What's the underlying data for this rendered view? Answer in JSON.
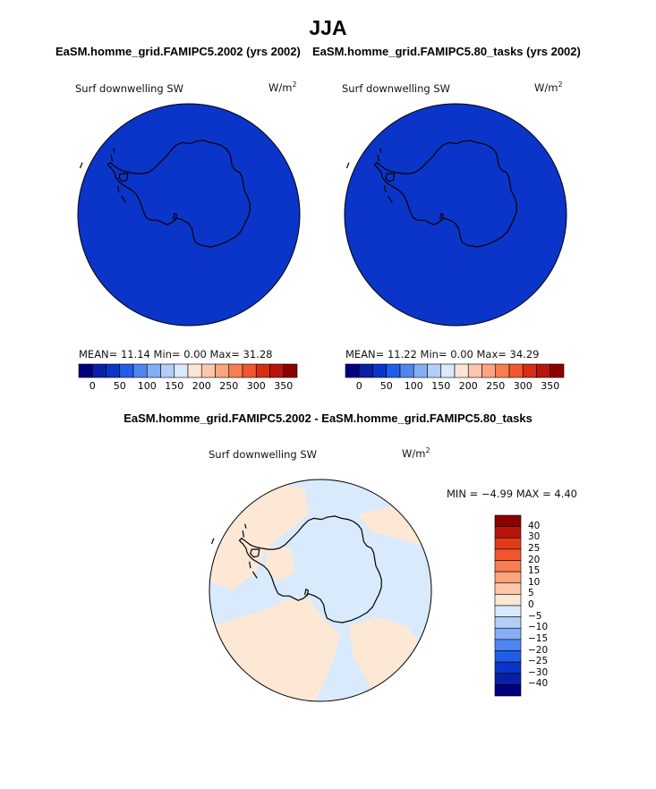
{
  "title": "JJA",
  "colors": {
    "map_blue": "#0a35c8",
    "diff_pos": "#fde8d6",
    "diff_neg": "#d8eafb",
    "coast": "#000000",
    "main_scale": [
      "#00007f",
      "#0a1fa8",
      "#0a35c8",
      "#1f5ee8",
      "#4f86f0",
      "#84aef5",
      "#b3cef8",
      "#dbe9fb",
      "#fde4d4",
      "#fcc6aa",
      "#fba57f",
      "#f87d52",
      "#f0572f",
      "#d72e13",
      "#b8160a",
      "#8c0000"
    ],
    "diff_scale": [
      "#8c0000",
      "#b8160a",
      "#e03b17",
      "#f0572f",
      "#f87d52",
      "#fba57f",
      "#fcc6aa",
      "#fde8d6",
      "#d8eafb",
      "#b3cef8",
      "#84aef5",
      "#4f86f0",
      "#1f5ee8",
      "#0a35c8",
      "#0a1fa8",
      "#00007f"
    ]
  },
  "panels": {
    "left": {
      "title": "EaSM.homme_grid.FAMIPC5.2002 (yrs 2002)",
      "variable": "Surf downwelling SW",
      "units_base": "W/m",
      "units_exp": "2",
      "stats": "MEAN=  11.14  Min=    0.00  Max=  31.28"
    },
    "right": {
      "title": "EaSM.homme_grid.FAMIPC5.80_tasks (yrs 2002)",
      "variable": "Surf downwelling SW",
      "units_base": "W/m",
      "units_exp": "2",
      "stats": "MEAN=  11.22  Min=    0.00  Max=  34.29"
    },
    "diff": {
      "title": "EaSM.homme_grid.FAMIPC5.2002 - EaSM.homme_grid.FAMIPC5.80_tasks",
      "variable": "Surf downwelling SW",
      "units_base": "W/m",
      "units_exp": "2",
      "stats": "MIN =  −4.99  MAX =    4.40"
    }
  },
  "chart_data": [
    {
      "type": "heatmap",
      "projection": "south polar stereographic",
      "title": "EaSM.homme_grid.FAMIPC5.2002 (yrs 2002)",
      "field": "Surf downwelling SW",
      "units": "W/m^2",
      "mean": 11.14,
      "min": 0.0,
      "max": 31.28,
      "colorbar_levels": [
        0,
        25,
        50,
        75,
        100,
        125,
        150,
        175,
        200,
        225,
        250,
        275,
        300,
        325,
        350
      ],
      "colorbar_tick_labels": [
        "0",
        "50",
        "100",
        "150",
        "200",
        "250",
        "300",
        "350"
      ]
    },
    {
      "type": "heatmap",
      "projection": "south polar stereographic",
      "title": "EaSM.homme_grid.FAMIPC5.80_tasks (yrs 2002)",
      "field": "Surf downwelling SW",
      "units": "W/m^2",
      "mean": 11.22,
      "min": 0.0,
      "max": 34.29,
      "colorbar_levels": [
        0,
        25,
        50,
        75,
        100,
        125,
        150,
        175,
        200,
        225,
        250,
        275,
        300,
        325,
        350
      ],
      "colorbar_tick_labels": [
        "0",
        "50",
        "100",
        "150",
        "200",
        "250",
        "300",
        "350"
      ]
    },
    {
      "type": "heatmap",
      "projection": "south polar stereographic",
      "title": "EaSM.homme_grid.FAMIPC5.2002 - EaSM.homme_grid.FAMIPC5.80_tasks",
      "field": "Surf downwelling SW",
      "units": "W/m^2",
      "min": -4.99,
      "max": 4.4,
      "colorbar_tick_labels": [
        "40",
        "30",
        "25",
        "20",
        "15",
        "10",
        "5",
        "0",
        "−5",
        "−10",
        "−15",
        "−20",
        "−25",
        "−30",
        "−40"
      ]
    }
  ]
}
